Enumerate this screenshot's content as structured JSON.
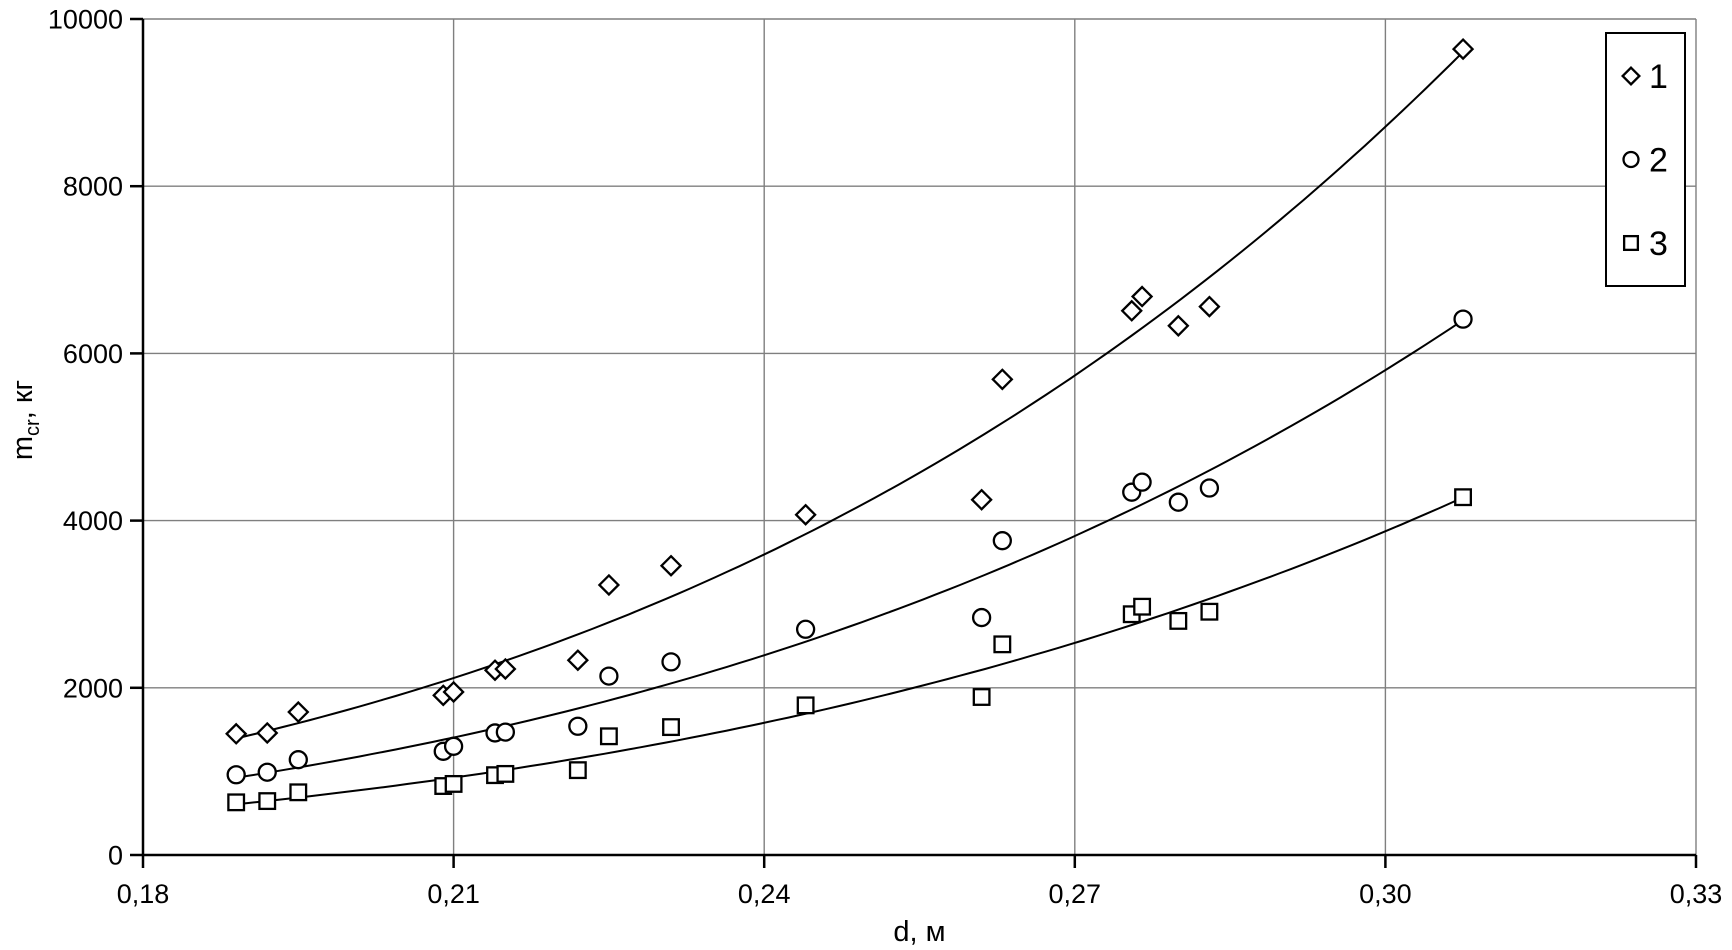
{
  "chart_data": {
    "type": "scatter",
    "title": "",
    "xlabel": "d, м",
    "ylabel": {
      "base": "m",
      "sub": "cr",
      "rest": ", кг"
    },
    "xlim": [
      0.18,
      0.33
    ],
    "ylim": [
      0,
      10000
    ],
    "x_ticks": [
      0.18,
      0.21,
      0.24,
      0.27,
      0.3,
      0.33
    ],
    "x_tick_labels": [
      "0,18",
      "0,21",
      "0,24",
      "0,27",
      "0,30",
      "0,33"
    ],
    "y_ticks": [
      0,
      2000,
      4000,
      6000,
      8000,
      10000
    ],
    "y_tick_labels": [
      "0",
      "2000",
      "4000",
      "6000",
      "8000",
      "10000"
    ],
    "grid": true,
    "legend_position": "top-right",
    "x": [
      0.189,
      0.192,
      0.195,
      0.209,
      0.21,
      0.214,
      0.215,
      0.222,
      0.225,
      0.231,
      0.244,
      0.261,
      0.263,
      0.2755,
      0.2765,
      0.28,
      0.283,
      0.3075
    ],
    "series": [
      {
        "name": "1",
        "marker": "diamond",
        "trend": "power",
        "values": [
          1450,
          1460,
          1710,
          1910,
          1950,
          2210,
          2225,
          2330,
          3230,
          3460,
          4070,
          4250,
          5690,
          6510,
          6680,
          6330,
          6560,
          9640
        ]
      },
      {
        "name": "2",
        "marker": "circle",
        "trend": "power",
        "values": [
          960,
          990,
          1140,
          1240,
          1300,
          1460,
          1470,
          1540,
          2140,
          2310,
          2700,
          2840,
          3760,
          4340,
          4460,
          4220,
          4390,
          6410
        ]
      },
      {
        "name": "3",
        "marker": "square",
        "trend": "power",
        "values": [
          630,
          645,
          750,
          825,
          850,
          955,
          970,
          1015,
          1420,
          1530,
          1790,
          1890,
          2520,
          2880,
          2970,
          2800,
          2910,
          4280
        ]
      }
    ],
    "colors": {
      "background": "#ffffff",
      "gridline": "#7f7f7f",
      "axis": "#000000",
      "text": "#000000",
      "marker_stroke": "#000000",
      "marker_fill": "#ffffff",
      "trendline": "#000000"
    }
  }
}
